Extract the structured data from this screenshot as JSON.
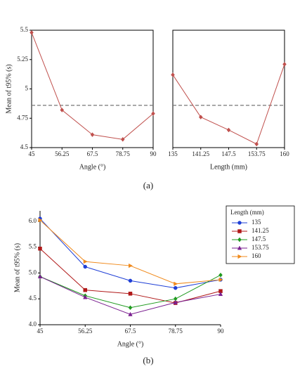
{
  "captions": [
    "(a)",
    "(b)"
  ],
  "chart_data": [
    {
      "type": "line",
      "xlabel": "Angle  (°)",
      "ylabel": "Mean of t95% (s)",
      "x": [
        45,
        56.25,
        67.5,
        78.75,
        90
      ],
      "values": [
        5.48,
        4.82,
        4.61,
        4.57,
        4.79
      ],
      "color": "#c0504d",
      "marker": "diamond",
      "xlim": [
        45,
        90
      ],
      "xticks": [
        45,
        56.25,
        67.5,
        78.75,
        90
      ],
      "ylim": [
        4.5,
        5.5
      ],
      "yticks": [
        4.5,
        4.75,
        5,
        5.25,
        5.5
      ],
      "reference_line": 4.86
    },
    {
      "type": "line",
      "xlabel": "Length (mm)",
      "x": [
        135,
        141.25,
        147.5,
        153.75,
        160
      ],
      "values": [
        5.12,
        4.76,
        4.65,
        4.53,
        5.21
      ],
      "color": "#c0504d",
      "marker": "diamond",
      "xlim": [
        135,
        160
      ],
      "xticks": [
        135,
        141.25,
        147.5,
        153.75,
        160
      ],
      "ylim": [
        4.5,
        5.5
      ],
      "reference_line": 4.86
    },
    {
      "type": "line",
      "xlabel": "Angle  (°)",
      "ylabel": "Mean of t95% (s)",
      "legend_title": "Length (mm)",
      "x": [
        45,
        56.25,
        67.5,
        78.75,
        90
      ],
      "series": [
        {
          "name": "135",
          "color": "#1f3fd6",
          "marker": "circle",
          "values": [
            6.05,
            5.12,
            4.85,
            4.71,
            4.87
          ]
        },
        {
          "name": "141.25",
          "color": "#b01818",
          "marker": "square",
          "values": [
            5.47,
            4.67,
            4.6,
            4.42,
            4.65
          ]
        },
        {
          "name": "147.5",
          "color": "#1f9a1f",
          "marker": "diamond",
          "values": [
            4.93,
            4.56,
            4.33,
            4.5,
            4.96
          ]
        },
        {
          "name": "153.75",
          "color": "#7a1f8f",
          "marker": "triangle",
          "values": [
            4.93,
            4.53,
            4.2,
            4.43,
            4.59
          ]
        },
        {
          "name": "160",
          "color": "#f08a1c",
          "marker": "triangle-right",
          "values": [
            6.02,
            5.22,
            5.14,
            4.79,
            4.87
          ]
        }
      ],
      "xlim": [
        45,
        90
      ],
      "xticks": [
        45,
        56.25,
        67.5,
        78.75,
        90
      ],
      "ylim": [
        4,
        6.2
      ],
      "yticks": [
        {
          "value": 4,
          "label": "4.0"
        },
        {
          "value": 4.5,
          "label": "4.5"
        },
        {
          "value": 5,
          "label": "5.0"
        },
        {
          "value": 5.5,
          "label": "5.5"
        },
        {
          "value": 6,
          "label": "6.0"
        }
      ]
    }
  ]
}
